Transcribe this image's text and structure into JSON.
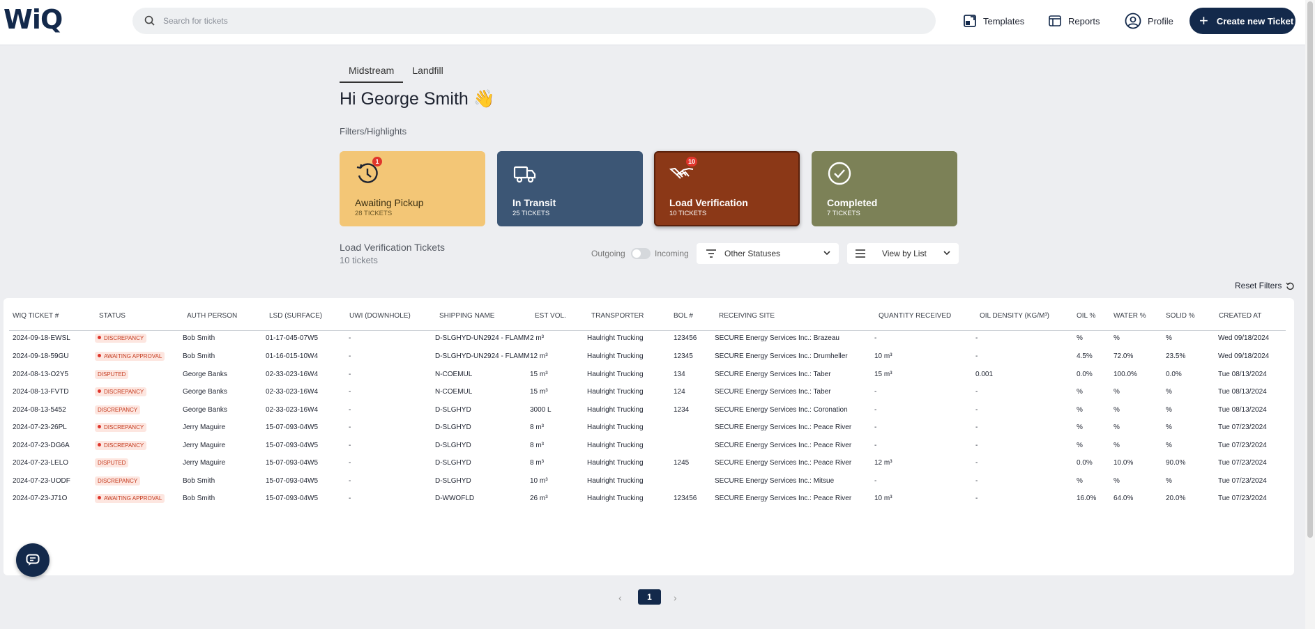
{
  "header": {
    "logo": "WiQ",
    "search_placeholder": "Search for tickets",
    "nav": {
      "templates": "Templates",
      "reports": "Reports",
      "profile": "Profile"
    },
    "create_button": "Create new Ticket"
  },
  "tabs": [
    "Midstream",
    "Landfill"
  ],
  "greeting": "Hi George Smith 👋",
  "filters_label": "Filters/Highlights",
  "cards": [
    {
      "title": "Awaiting Pickup",
      "sub": "28 TICKETS",
      "badge": "1",
      "color": "#f3c676",
      "icon": "history-icon"
    },
    {
      "title": "In Transit",
      "sub": "25 TICKETS",
      "badge": "",
      "color": "#3c5675",
      "icon": "truck-icon"
    },
    {
      "title": "Load Verification",
      "sub": "10 TICKETS",
      "badge": "10",
      "color": "#8b3817",
      "icon": "handshake-icon"
    },
    {
      "title": "Completed",
      "sub": "7 TICKETS",
      "badge": "",
      "color": "#7c8157",
      "icon": "check-circle-icon"
    }
  ],
  "section": {
    "title": "Load Verification Tickets",
    "count": "10 tickets"
  },
  "toggle": {
    "left": "Outgoing",
    "right": "Incoming"
  },
  "status_dropdown": "Other Statuses",
  "view_dropdown": "View by List",
  "reset_filters": "Reset Filters",
  "table": {
    "headers": [
      "WIQ TICKET #",
      "STATUS",
      "AUTH PERSON",
      "LSD (SURFACE)",
      "UWI (DOWNHOLE)",
      "SHIPPING NAME",
      "EST VOL.",
      "TRANSPORTER",
      "BOL #",
      "RECEIVING SITE",
      "QUANTITY RECEIVED",
      "OIL DENSITY (KG/M³)",
      "OIL %",
      "WATER %",
      "SOLID %",
      "CREATED AT"
    ],
    "rows": [
      [
        "2024-09-18-EWSL",
        "DISCREPANCY",
        "Bob Smith",
        "01-17-045-07W5",
        "-",
        "D-SLGHYD-UN2924 - FLAMM",
        "2 m³",
        "Haulright Trucking",
        "123456",
        "SECURE Energy Services Inc.: Brazeau",
        "-",
        "-",
        "%",
        "%",
        "%",
        "Wed 09/18/2024"
      ],
      [
        "2024-09-18-59GU",
        "AWAITING APPROVAL",
        "Bob Smith",
        "01-16-015-10W4",
        "-",
        "D-SLGHYD-UN2924 - FLAMM",
        "12 m³",
        "Haulright Trucking",
        "12345",
        "SECURE Energy Services Inc.: Drumheller",
        "10 m³",
        "-",
        "4.5%",
        "72.0%",
        "23.5%",
        "Wed 09/18/2024"
      ],
      [
        "2024-08-13-O2Y5",
        "DISPUTED",
        "George Banks",
        "02-33-023-16W4",
        "-",
        "N-COEMUL",
        "15 m³",
        "Haulright Trucking",
        "134",
        "SECURE Energy Services Inc.: Taber",
        "15 m³",
        "0.001",
        "0.0%",
        "100.0%",
        "0.0%",
        "Tue 08/13/2024"
      ],
      [
        "2024-08-13-FVTD",
        "DISCREPANCY",
        "George Banks",
        "02-33-023-16W4",
        "-",
        "N-COEMUL",
        "15 m³",
        "Haulright Trucking",
        "124",
        "SECURE Energy Services Inc.: Taber",
        "-",
        "-",
        "%",
        "%",
        "%",
        "Tue 08/13/2024"
      ],
      [
        "2024-08-13-5452",
        "DISCREPANCY",
        "George Banks",
        "02-33-023-16W4",
        "-",
        "D-SLGHYD",
        "3000 L",
        "Haulright Trucking",
        "1234",
        "SECURE Energy Services Inc.: Coronation",
        "-",
        "-",
        "%",
        "%",
        "%",
        "Tue 08/13/2024"
      ],
      [
        "2024-07-23-26PL",
        "DISCREPANCY",
        "Jerry Maguire",
        "15-07-093-04W5",
        "-",
        "D-SLGHYD",
        "8 m³",
        "Haulright Trucking",
        "",
        "SECURE Energy Services Inc.: Peace River",
        "-",
        "-",
        "%",
        "%",
        "%",
        "Tue 07/23/2024"
      ],
      [
        "2024-07-23-DG6A",
        "DISCREPANCY",
        "Jerry Maguire",
        "15-07-093-04W5",
        "-",
        "D-SLGHYD",
        "8 m³",
        "Haulright Trucking",
        "",
        "SECURE Energy Services Inc.: Peace River",
        "-",
        "-",
        "%",
        "%",
        "%",
        "Tue 07/23/2024"
      ],
      [
        "2024-07-23-LELO",
        "DISPUTED",
        "Jerry Maguire",
        "15-07-093-04W5",
        "-",
        "D-SLGHYD",
        "8 m³",
        "Haulright Trucking",
        "1245",
        "SECURE Energy Services Inc.: Peace River",
        "12 m³",
        "-",
        "0.0%",
        "10.0%",
        "90.0%",
        "Tue 07/23/2024"
      ],
      [
        "2024-07-23-UODF",
        "DISCREPANCY",
        "Bob Smith",
        "15-07-093-04W5",
        "-",
        "D-SLGHYD",
        "10 m³",
        "Haulright Trucking",
        "",
        "SECURE Energy Services Inc.: Mitsue",
        "-",
        "-",
        "%",
        "%",
        "%",
        "Tue 07/23/2024"
      ],
      [
        "2024-07-23-J71O",
        "AWAITING APPROVAL",
        "Bob Smith",
        "15-07-093-04W5",
        "-",
        "D-WWOFLD",
        "26 m³",
        "Haulright Trucking",
        "123456",
        "SECURE Energy Services Inc.: Peace River",
        "10 m³",
        "-",
        "16.0%",
        "64.0%",
        "20.0%",
        "Tue 07/23/2024"
      ]
    ],
    "status_dot": [
      true,
      true,
      false,
      true,
      false,
      true,
      true,
      false,
      false,
      true
    ]
  },
  "pagination": {
    "prev": "‹",
    "current": "1",
    "next": "›"
  }
}
